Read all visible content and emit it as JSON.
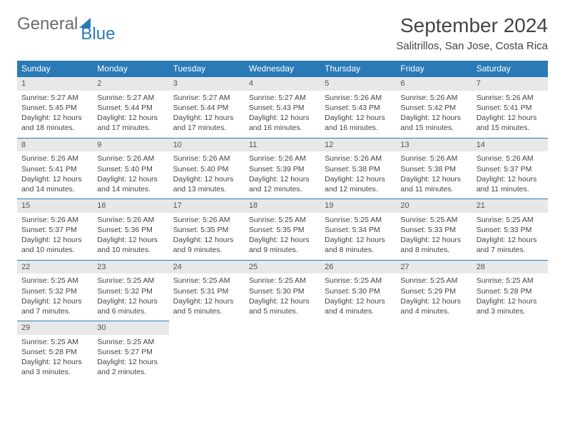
{
  "brand": {
    "part1": "General",
    "part2": "Blue"
  },
  "title": "September 2024",
  "location": "Salitrillos, San Jose, Costa Rica",
  "colors": {
    "header_bg": "#2a7ab8",
    "header_text": "#ffffff",
    "daynum_bg": "#e8e8e8",
    "row_divider": "#2a7ab8",
    "body_text": "#444444",
    "brand_gray": "#6b6b6b",
    "brand_blue": "#2a7ab8",
    "page_bg": "#ffffff"
  },
  "typography": {
    "month_title_pt": 28,
    "location_pt": 15,
    "dayheader_pt": 12,
    "cell_pt": 10.5,
    "font_family": "Arial"
  },
  "day_headers": [
    "Sunday",
    "Monday",
    "Tuesday",
    "Wednesday",
    "Thursday",
    "Friday",
    "Saturday"
  ],
  "weeks": [
    [
      {
        "n": "1",
        "sr": "Sunrise: 5:27 AM",
        "ss": "Sunset: 5:45 PM",
        "dl1": "Daylight: 12 hours",
        "dl2": "and 18 minutes."
      },
      {
        "n": "2",
        "sr": "Sunrise: 5:27 AM",
        "ss": "Sunset: 5:44 PM",
        "dl1": "Daylight: 12 hours",
        "dl2": "and 17 minutes."
      },
      {
        "n": "3",
        "sr": "Sunrise: 5:27 AM",
        "ss": "Sunset: 5:44 PM",
        "dl1": "Daylight: 12 hours",
        "dl2": "and 17 minutes."
      },
      {
        "n": "4",
        "sr": "Sunrise: 5:27 AM",
        "ss": "Sunset: 5:43 PM",
        "dl1": "Daylight: 12 hours",
        "dl2": "and 16 minutes."
      },
      {
        "n": "5",
        "sr": "Sunrise: 5:26 AM",
        "ss": "Sunset: 5:43 PM",
        "dl1": "Daylight: 12 hours",
        "dl2": "and 16 minutes."
      },
      {
        "n": "6",
        "sr": "Sunrise: 5:26 AM",
        "ss": "Sunset: 5:42 PM",
        "dl1": "Daylight: 12 hours",
        "dl2": "and 15 minutes."
      },
      {
        "n": "7",
        "sr": "Sunrise: 5:26 AM",
        "ss": "Sunset: 5:41 PM",
        "dl1": "Daylight: 12 hours",
        "dl2": "and 15 minutes."
      }
    ],
    [
      {
        "n": "8",
        "sr": "Sunrise: 5:26 AM",
        "ss": "Sunset: 5:41 PM",
        "dl1": "Daylight: 12 hours",
        "dl2": "and 14 minutes."
      },
      {
        "n": "9",
        "sr": "Sunrise: 5:26 AM",
        "ss": "Sunset: 5:40 PM",
        "dl1": "Daylight: 12 hours",
        "dl2": "and 14 minutes."
      },
      {
        "n": "10",
        "sr": "Sunrise: 5:26 AM",
        "ss": "Sunset: 5:40 PM",
        "dl1": "Daylight: 12 hours",
        "dl2": "and 13 minutes."
      },
      {
        "n": "11",
        "sr": "Sunrise: 5:26 AM",
        "ss": "Sunset: 5:39 PM",
        "dl1": "Daylight: 12 hours",
        "dl2": "and 12 minutes."
      },
      {
        "n": "12",
        "sr": "Sunrise: 5:26 AM",
        "ss": "Sunset: 5:38 PM",
        "dl1": "Daylight: 12 hours",
        "dl2": "and 12 minutes."
      },
      {
        "n": "13",
        "sr": "Sunrise: 5:26 AM",
        "ss": "Sunset: 5:38 PM",
        "dl1": "Daylight: 12 hours",
        "dl2": "and 11 minutes."
      },
      {
        "n": "14",
        "sr": "Sunrise: 5:26 AM",
        "ss": "Sunset: 5:37 PM",
        "dl1": "Daylight: 12 hours",
        "dl2": "and 11 minutes."
      }
    ],
    [
      {
        "n": "15",
        "sr": "Sunrise: 5:26 AM",
        "ss": "Sunset: 5:37 PM",
        "dl1": "Daylight: 12 hours",
        "dl2": "and 10 minutes."
      },
      {
        "n": "16",
        "sr": "Sunrise: 5:26 AM",
        "ss": "Sunset: 5:36 PM",
        "dl1": "Daylight: 12 hours",
        "dl2": "and 10 minutes."
      },
      {
        "n": "17",
        "sr": "Sunrise: 5:26 AM",
        "ss": "Sunset: 5:35 PM",
        "dl1": "Daylight: 12 hours",
        "dl2": "and 9 minutes."
      },
      {
        "n": "18",
        "sr": "Sunrise: 5:25 AM",
        "ss": "Sunset: 5:35 PM",
        "dl1": "Daylight: 12 hours",
        "dl2": "and 9 minutes."
      },
      {
        "n": "19",
        "sr": "Sunrise: 5:25 AM",
        "ss": "Sunset: 5:34 PM",
        "dl1": "Daylight: 12 hours",
        "dl2": "and 8 minutes."
      },
      {
        "n": "20",
        "sr": "Sunrise: 5:25 AM",
        "ss": "Sunset: 5:33 PM",
        "dl1": "Daylight: 12 hours",
        "dl2": "and 8 minutes."
      },
      {
        "n": "21",
        "sr": "Sunrise: 5:25 AM",
        "ss": "Sunset: 5:33 PM",
        "dl1": "Daylight: 12 hours",
        "dl2": "and 7 minutes."
      }
    ],
    [
      {
        "n": "22",
        "sr": "Sunrise: 5:25 AM",
        "ss": "Sunset: 5:32 PM",
        "dl1": "Daylight: 12 hours",
        "dl2": "and 7 minutes."
      },
      {
        "n": "23",
        "sr": "Sunrise: 5:25 AM",
        "ss": "Sunset: 5:32 PM",
        "dl1": "Daylight: 12 hours",
        "dl2": "and 6 minutes."
      },
      {
        "n": "24",
        "sr": "Sunrise: 5:25 AM",
        "ss": "Sunset: 5:31 PM",
        "dl1": "Daylight: 12 hours",
        "dl2": "and 5 minutes."
      },
      {
        "n": "25",
        "sr": "Sunrise: 5:25 AM",
        "ss": "Sunset: 5:30 PM",
        "dl1": "Daylight: 12 hours",
        "dl2": "and 5 minutes."
      },
      {
        "n": "26",
        "sr": "Sunrise: 5:25 AM",
        "ss": "Sunset: 5:30 PM",
        "dl1": "Daylight: 12 hours",
        "dl2": "and 4 minutes."
      },
      {
        "n": "27",
        "sr": "Sunrise: 5:25 AM",
        "ss": "Sunset: 5:29 PM",
        "dl1": "Daylight: 12 hours",
        "dl2": "and 4 minutes."
      },
      {
        "n": "28",
        "sr": "Sunrise: 5:25 AM",
        "ss": "Sunset: 5:28 PM",
        "dl1": "Daylight: 12 hours",
        "dl2": "and 3 minutes."
      }
    ],
    [
      {
        "n": "29",
        "sr": "Sunrise: 5:25 AM",
        "ss": "Sunset: 5:28 PM",
        "dl1": "Daylight: 12 hours",
        "dl2": "and 3 minutes."
      },
      {
        "n": "30",
        "sr": "Sunrise: 5:25 AM",
        "ss": "Sunset: 5:27 PM",
        "dl1": "Daylight: 12 hours",
        "dl2": "and 2 minutes."
      },
      null,
      null,
      null,
      null,
      null
    ]
  ]
}
